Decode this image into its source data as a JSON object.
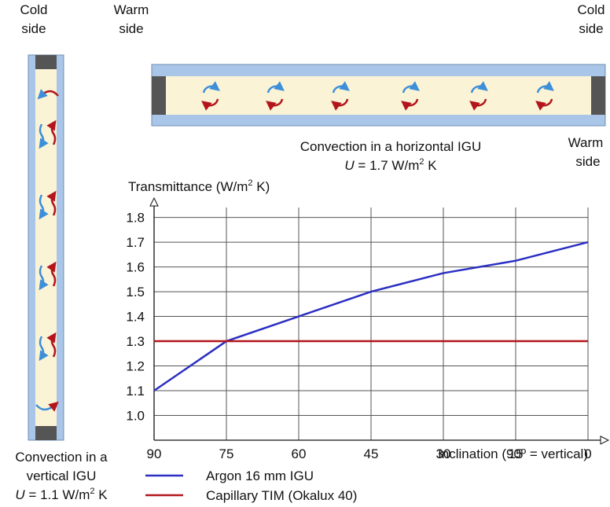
{
  "chart_data": {
    "type": "line",
    "y_label": {
      "text": "Transmittance (W/m",
      "sup": "2",
      "tail": " K)"
    },
    "x_label": "Inclination (90º = vertical)",
    "x": [
      90,
      75,
      60,
      45,
      30,
      15,
      0
    ],
    "series": [
      {
        "name": "Argon 16 mm IGU",
        "color": "#2b2fc2",
        "values": [
          1.1,
          1.3,
          1.4,
          1.5,
          1.575,
          1.625,
          1.7
        ]
      },
      {
        "name": "Capillary TIM (Okalux 40)",
        "color": "#b3151b",
        "values": [
          1.3,
          1.3,
          1.3,
          1.3,
          1.3,
          1.3,
          1.3
        ]
      }
    ],
    "xlim": [
      90,
      0
    ],
    "ylim": [
      0.9,
      1.84
    ],
    "xticks": [
      90,
      75,
      60,
      45,
      30,
      15,
      0
    ],
    "yticks": [
      {
        "value": 1,
        "label": "1.0"
      },
      1.1,
      1.2,
      1.3,
      1.4,
      1.5,
      1.6,
      1.7,
      1.8
    ],
    "grid": true,
    "legend": "bottom-left"
  },
  "diagram": {
    "vertical": {
      "side_top": [
        "Cold",
        "side"
      ],
      "caption": [
        "Convection in a",
        "vertical IGU"
      ],
      "u": {
        "sym": "U",
        "text": " = 1.1 W/m",
        "sup": "2",
        "tail": " K"
      }
    },
    "horizontal": {
      "side_left": [
        "Warm",
        "side"
      ],
      "side_right_top": [
        "Cold",
        "side"
      ],
      "side_right_bottom": [
        "Warm",
        "side"
      ],
      "caption": "Convection in a horizontal IGU",
      "u": {
        "sym": "U",
        "text": " = 1.7 W/m",
        "sup": "2",
        "tail": " K"
      }
    }
  }
}
